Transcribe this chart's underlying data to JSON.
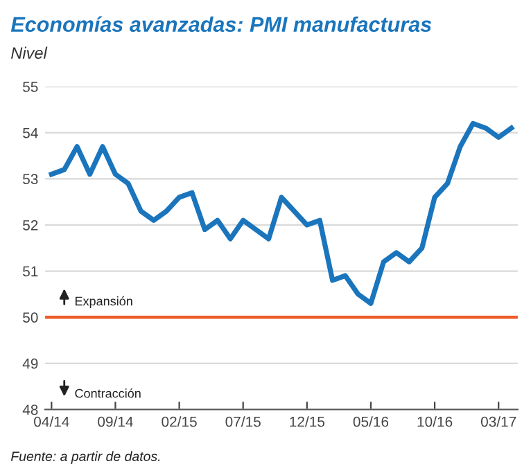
{
  "chart_data": {
    "type": "line",
    "title": "Economías avanzadas: PMI manufacturas",
    "ylabel": "Nivel",
    "categories": [
      "04/14",
      null,
      null,
      null,
      null,
      "09/14",
      null,
      null,
      null,
      null,
      "02/15",
      null,
      null,
      null,
      null,
      "07/15",
      null,
      null,
      null,
      null,
      "12/15",
      null,
      null,
      null,
      null,
      "05/16",
      null,
      null,
      null,
      null,
      "10/16",
      null,
      null,
      null,
      null,
      "03/17",
      null
    ],
    "series": [
      {
        "color": "#1a75bc",
        "values": [
          53.1,
          53.2,
          53.7,
          53.1,
          53.7,
          53.1,
          52.9,
          52.3,
          52.1,
          52.3,
          52.6,
          52.7,
          51.9,
          52.1,
          51.7,
          52.1,
          51.9,
          51.7,
          52.6,
          52.3,
          52.0,
          52.1,
          50.8,
          50.9,
          50.5,
          50.3,
          51.2,
          51.4,
          51.2,
          51.5,
          52.6,
          52.9,
          53.7,
          54.2,
          54.1,
          53.9,
          54.1
        ]
      }
    ],
    "ylim": [
      48,
      55
    ],
    "yticks": [
      48,
      49,
      50,
      51,
      52,
      53,
      54,
      55
    ],
    "grid": "y",
    "legend": false,
    "marker": "none",
    "line_style": "solid",
    "ref_lines": [
      {
        "axis": "y",
        "value": 50,
        "color": "#f05a28"
      }
    ],
    "annotations": [
      "Expansión",
      "Contracción",
      "Fuente: a partir de datos."
    ]
  }
}
